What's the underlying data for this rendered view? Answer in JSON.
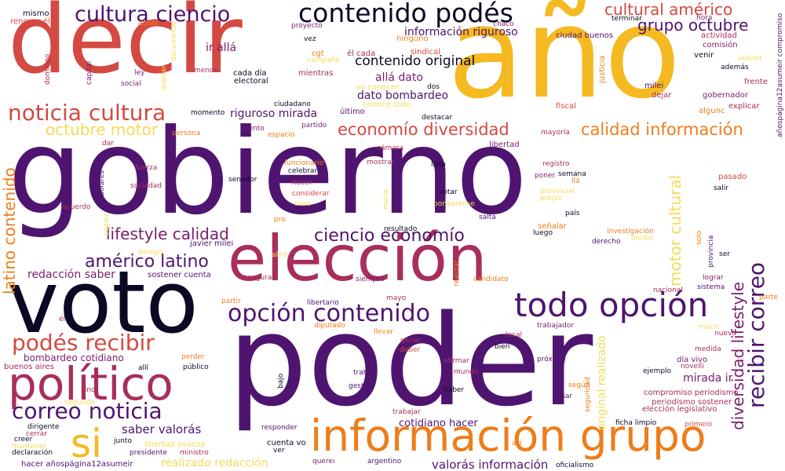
{
  "palette": {
    "black": "#0b0924",
    "purple": "#4f1470",
    "magenta": "#7a1d6d",
    "crimson": "#a82e5b",
    "red": "#d44942",
    "orange": "#ee7d1a",
    "gold": "#f5b921",
    "yellow": "#f2dc58"
  },
  "words": [
    {
      "text": "gobierno",
      "color": "purple"
    },
    {
      "text": "poder",
      "color": "purple"
    },
    {
      "text": "año",
      "color": "gold"
    },
    {
      "text": "decir",
      "color": "red"
    },
    {
      "text": "voto",
      "color": "black"
    },
    {
      "text": "elección",
      "color": "crimson"
    },
    {
      "text": "información grupo",
      "color": "orange"
    },
    {
      "text": "político",
      "color": "crimson"
    },
    {
      "text": "todo opción",
      "color": "purple"
    },
    {
      "text": "opción contenido",
      "color": "purple"
    },
    {
      "text": "contenido podés",
      "color": "black"
    },
    {
      "text": "cultura ciencio",
      "color": "purple"
    },
    {
      "text": "noticia cultura",
      "color": "red"
    },
    {
      "text": "podés recibir",
      "color": "red"
    },
    {
      "text": "correo noticia",
      "color": "purple"
    },
    {
      "text": "si",
      "color": "gold"
    },
    {
      "text": "ciencio economío",
      "color": "purple"
    },
    {
      "text": "economío diversidad",
      "color": "red"
    },
    {
      "text": "calidad información",
      "color": "orange"
    },
    {
      "text": "recibir correo",
      "color": "purple"
    },
    {
      "text": "diversidad lifestyle",
      "color": "magenta"
    },
    {
      "text": "motor cultural",
      "color": "yellow"
    },
    {
      "text": "lifestyle calidad",
      "color": "magenta"
    },
    {
      "text": "américo latino",
      "color": "purple"
    },
    {
      "text": "latino contenido",
      "color": "orange"
    },
    {
      "text": "cultural américo",
      "color": "red"
    },
    {
      "text": "grupo octubre",
      "color": "purple"
    },
    {
      "text": "octubre motor",
      "color": "yellow"
    },
    {
      "text": "contenido original",
      "color": "black"
    },
    {
      "text": "información riguroso",
      "color": "purple"
    },
    {
      "text": "allá dato",
      "color": "magenta"
    },
    {
      "text": "dato bombardeo",
      "color": "purple"
    },
    {
      "text": "riguroso mirada",
      "color": "purple"
    },
    {
      "text": "redacción saber",
      "color": "magenta"
    },
    {
      "text": "saber valorás",
      "color": "purple"
    },
    {
      "text": "valorás información",
      "color": "purple"
    },
    {
      "text": "original realizado",
      "color": "yellow"
    },
    {
      "text": "realizado redacción",
      "color": "yellow"
    },
    {
      "text": "cotidiano hacer",
      "color": "purple"
    },
    {
      "text": "mirada ir",
      "color": "magenta"
    },
    {
      "text": "ir allá",
      "color": "magenta"
    },
    {
      "text": "bombardeo cotidiano",
      "color": "magenta"
    },
    {
      "text": "compromiso periodismo",
      "color": "crimson"
    },
    {
      "text": "periodismo sostener",
      "color": "crimson"
    },
    {
      "text": "sostener cuenta",
      "color": "purple"
    },
    {
      "text": "cuenta vo",
      "color": "black"
    },
    {
      "text": "vo conocer",
      "color": "yellow"
    },
    {
      "text": "conocé todo",
      "color": "yellow"
    },
    {
      "text": "añospágina12asumeir compromiso",
      "color": "purple"
    },
    {
      "text": "hacer añospágina12asumeir",
      "color": "purple"
    },
    {
      "text": "elección legislativo",
      "color": "crimson"
    },
    {
      "text": "buenos aires",
      "color": "crimson"
    },
    {
      "text": "javier milei",
      "color": "purple"
    },
    {
      "text": "ciudad buenos",
      "color": "purple"
    },
    {
      "text": "libertad avanza",
      "color": "yellow"
    },
    {
      "text": "cada día",
      "color": "black"
    },
    {
      "text": "él cada",
      "color": "crimson"
    },
    {
      "text": "día vivo",
      "color": "magenta"
    },
    {
      "text": "mismo",
      "color": "black"
    },
    {
      "text": "renovar él",
      "color": "red"
    },
    {
      "text": "aquel",
      "color": "orange"
    },
    {
      "text": "proyecto",
      "color": "magenta"
    },
    {
      "text": "chaco",
      "color": "magenta"
    },
    {
      "text": "terminar",
      "color": "black"
    },
    {
      "text": "hora",
      "color": "magenta"
    },
    {
      "text": "actividad",
      "color": "crimson"
    },
    {
      "text": "comisión",
      "color": "magenta"
    },
    {
      "text": "venir",
      "color": "black"
    },
    {
      "text": "volver",
      "color": "yellow"
    },
    {
      "text": "además",
      "color": "black"
    },
    {
      "text": "frente",
      "color": "crimson"
    },
    {
      "text": "gobernador",
      "color": "magenta"
    },
    {
      "text": "explicar",
      "color": "crimson"
    },
    {
      "text": "algunc",
      "color": "orange"
    },
    {
      "text": "dejar",
      "color": "crimson"
    },
    {
      "text": "milei",
      "color": "purple"
    },
    {
      "text": "fiscal",
      "color": "red"
    },
    {
      "text": "justicia",
      "color": "orange"
    },
    {
      "text": "vez",
      "color": "black"
    },
    {
      "text": "ninguno",
      "color": "orange"
    },
    {
      "text": "sindical",
      "color": "red"
    },
    {
      "text": "cgt",
      "color": "orange"
    },
    {
      "text": "campaña",
      "color": "yellow"
    },
    {
      "text": "mientras",
      "color": "crimson"
    },
    {
      "text": "electoral",
      "color": "black"
    },
    {
      "text": "menos",
      "color": "crimson"
    },
    {
      "text": "dos",
      "color": "black"
    },
    {
      "text": "último",
      "color": "purple"
    },
    {
      "text": "ciudadano",
      "color": "black"
    },
    {
      "text": "destacar",
      "color": "black"
    },
    {
      "text": "partido",
      "color": "magenta"
    },
    {
      "text": "mayoría",
      "color": "crimson"
    },
    {
      "text": "libertad",
      "color": "magenta"
    },
    {
      "text": "cámara",
      "color": "crimson"
    },
    {
      "text": "mostrar",
      "color": "crimson"
    },
    {
      "text": "listo",
      "color": "black"
    },
    {
      "text": "registro",
      "color": "crimson"
    },
    {
      "text": "semana",
      "color": "black"
    },
    {
      "text": "llá",
      "color": "orange"
    },
    {
      "text": "provincial",
      "color": "yellow"
    },
    {
      "text": "poner",
      "color": "magenta"
    },
    {
      "text": "propio",
      "color": "yellow"
    },
    {
      "text": "país",
      "color": "black"
    },
    {
      "text": "pasado",
      "color": "red"
    },
    {
      "text": "salir",
      "color": "black"
    },
    {
      "text": "señalar",
      "color": "orange"
    },
    {
      "text": "luego",
      "color": "black"
    },
    {
      "text": "salta",
      "color": "purple"
    },
    {
      "text": "bonaerense",
      "color": "yellow"
    },
    {
      "text": "votar",
      "color": "black"
    },
    {
      "text": "investigación",
      "color": "orange"
    },
    {
      "text": "medio",
      "color": "yellow"
    },
    {
      "text": "derecho",
      "color": "purple"
    },
    {
      "text": "solo",
      "color": "orange"
    },
    {
      "text": "provincia",
      "color": "purple"
    },
    {
      "text": "ser",
      "color": "black"
    },
    {
      "text": "lograr",
      "color": "magenta"
    },
    {
      "text": "sistema",
      "color": "purple"
    },
    {
      "text": "nacional",
      "color": "crimson"
    },
    {
      "text": "parte",
      "color": "orange"
    },
    {
      "text": "macri",
      "color": "yellow"
    },
    {
      "text": "nuevo",
      "color": "crimson"
    },
    {
      "text": "medida",
      "color": "crimson"
    },
    {
      "text": "novelli",
      "color": "crimson"
    },
    {
      "text": "ejemplo",
      "color": "black"
    },
    {
      "text": "primero",
      "color": "red"
    },
    {
      "text": "ficha limpio",
      "color": "black"
    },
    {
      "text": "según",
      "color": "orange"
    },
    {
      "text": "pasar",
      "color": "purple"
    },
    {
      "text": "haber",
      "color": "black"
    },
    {
      "text": "próximo",
      "color": "purple"
    },
    {
      "text": "afirmar",
      "color": "crimson"
    },
    {
      "text": "mundo",
      "color": "crimson"
    },
    {
      "text": "bien",
      "color": "black"
    },
    {
      "text": "local",
      "color": "crimson"
    },
    {
      "text": "trabajador",
      "color": "magenta"
    },
    {
      "text": "tratar",
      "color": "purple"
    },
    {
      "text": "gestión",
      "color": "purple"
    },
    {
      "text": "llevar",
      "color": "orange"
    },
    {
      "text": "ganar",
      "color": "crimson"
    },
    {
      "text": "deber",
      "color": "red"
    },
    {
      "text": "diputado",
      "color": "orange"
    },
    {
      "text": "mayo",
      "color": "crimson"
    },
    {
      "text": "libertario",
      "color": "purple"
    },
    {
      "text": "realizar",
      "color": "orange"
    },
    {
      "text": "candidato",
      "color": "orange"
    },
    {
      "text": "siempre",
      "color": "magenta"
    },
    {
      "text": "partir",
      "color": "orange"
    },
    {
      "text": "asegurar",
      "color": "crimson"
    },
    {
      "text": "abril",
      "color": "yellow"
    },
    {
      "text": "resultado",
      "color": "black"
    },
    {
      "text": "pro",
      "color": "orange"
    },
    {
      "text": "caso",
      "color": "yellow"
    },
    {
      "text": "considerar",
      "color": "red"
    },
    {
      "text": "hacer",
      "color": "crimson"
    },
    {
      "text": "celebrar",
      "color": "black"
    },
    {
      "text": "funcionario",
      "color": "orange"
    },
    {
      "text": "senador",
      "color": "black"
    },
    {
      "text": "maría",
      "color": "yellow"
    },
    {
      "text": "espacio",
      "color": "orange"
    },
    {
      "text": "ciento",
      "color": "magenta"
    },
    {
      "text": "momento",
      "color": "black"
    },
    {
      "text": "persona",
      "color": "orange"
    },
    {
      "text": "dar",
      "color": "crimson"
    },
    {
      "text": "fuerza",
      "color": "crimson"
    },
    {
      "text": "sociedad",
      "color": "crimson"
    },
    {
      "text": "dólares",
      "color": "purple"
    },
    {
      "text": "acuerdo",
      "color": "crimson"
    },
    {
      "text": "seguir",
      "color": "yellow"
    },
    {
      "text": "tiempo",
      "color": "yellow"
    },
    {
      "text": "domingo",
      "color": "crimson"
    },
    {
      "text": "capital",
      "color": "magenta"
    },
    {
      "text": "ley",
      "color": "magenta"
    },
    {
      "text": "social",
      "color": "magenta"
    },
    {
      "text": "quedar",
      "color": "yellow"
    },
    {
      "text": "documento",
      "color": "yellow"
    },
    {
      "text": "perder",
      "color": "orange"
    },
    {
      "text": "allí",
      "color": "black"
    },
    {
      "text": "público",
      "color": "black"
    },
    {
      "text": "sino",
      "color": "crimson"
    },
    {
      "text": "segundo",
      "color": "yellow"
    },
    {
      "text": "dirigente",
      "color": "black"
    },
    {
      "text": "cerrar",
      "color": "crimson"
    },
    {
      "text": "creer",
      "color": "black"
    },
    {
      "text": "mantener",
      "color": "yellow"
    },
    {
      "text": "declaración",
      "color": "black"
    },
    {
      "text": "junto",
      "color": "black"
    },
    {
      "text": "presidente",
      "color": "purple"
    },
    {
      "text": "ministro",
      "color": "crimson"
    },
    {
      "text": "bajo",
      "color": "black"
    },
    {
      "text": "responder",
      "color": "purple"
    },
    {
      "text": "trabajar",
      "color": "crimson"
    },
    {
      "text": "ver",
      "color": "black"
    },
    {
      "text": "quereı",
      "color": "magenta"
    },
    {
      "text": "argentino",
      "color": "purple"
    },
    {
      "text": "así",
      "color": "orange"
    },
    {
      "text": "oficialismo",
      "color": "black"
    },
    {
      "text": "seguridad",
      "color": "orange"
    },
    {
      "text": "él",
      "color": "crimson"
    }
  ]
}
